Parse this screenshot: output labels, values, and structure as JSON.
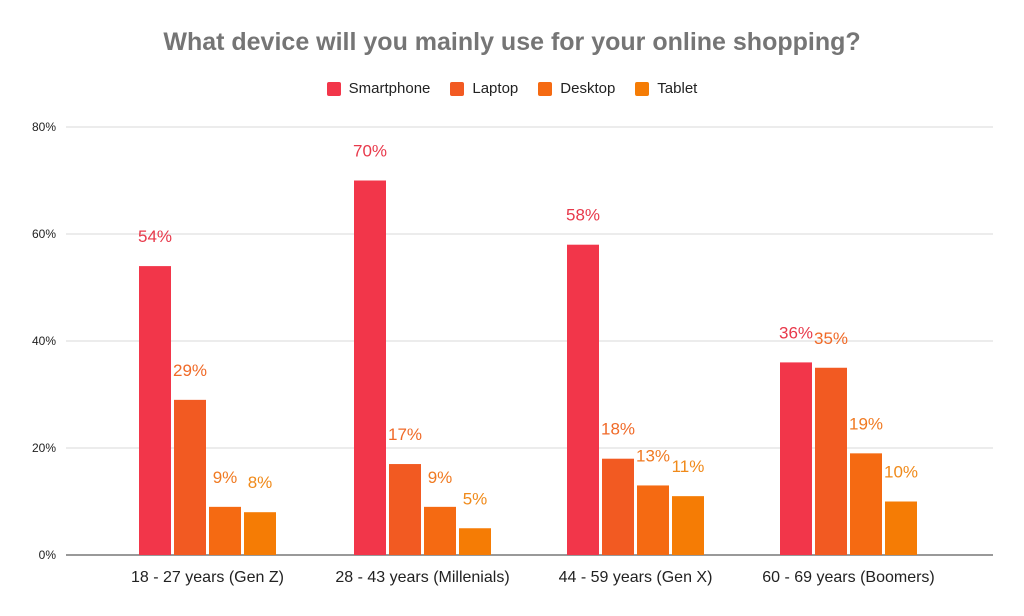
{
  "chart_data": {
    "type": "bar",
    "title": "What device will you mainly use for your online shopping?",
    "categories": [
      "18 - 27 years (Gen Z)",
      "28 - 43 years (Millenials)",
      "44 - 59 years (Gen X)",
      "60 - 69 years (Boomers)"
    ],
    "series": [
      {
        "name": "Smartphone",
        "color": "#f2364a",
        "label_color": "#e8394b",
        "values": [
          54,
          70,
          58,
          36
        ],
        "labels": [
          "54%",
          "70%",
          "58%",
          "36%"
        ]
      },
      {
        "name": "Laptop",
        "color": "#f25a22",
        "label_color": "#f06a28",
        "values": [
          29,
          17,
          18,
          35
        ],
        "labels": [
          "29%",
          "17%",
          "18%",
          "35%"
        ]
      },
      {
        "name": "Desktop",
        "color": "#f56a12",
        "label_color": "#f07a22",
        "values": [
          9,
          9,
          13,
          19
        ],
        "labels": [
          "9%",
          "9%",
          "13%",
          "19%"
        ]
      },
      {
        "name": "Tablet",
        "color": "#f57c05",
        "label_color": "#f08a1a",
        "values": [
          8,
          5,
          11,
          10
        ],
        "labels": [
          "8%",
          "5%",
          "11%",
          "10%"
        ]
      }
    ],
    "yticks": [
      0,
      20,
      40,
      60,
      80
    ],
    "ytick_labels": [
      "0%",
      "20%",
      "40%",
      "60%",
      "80%"
    ],
    "ylim": [
      0,
      80
    ],
    "xlabel": "",
    "ylabel": "",
    "grid": true,
    "legend_position": "top-center"
  }
}
